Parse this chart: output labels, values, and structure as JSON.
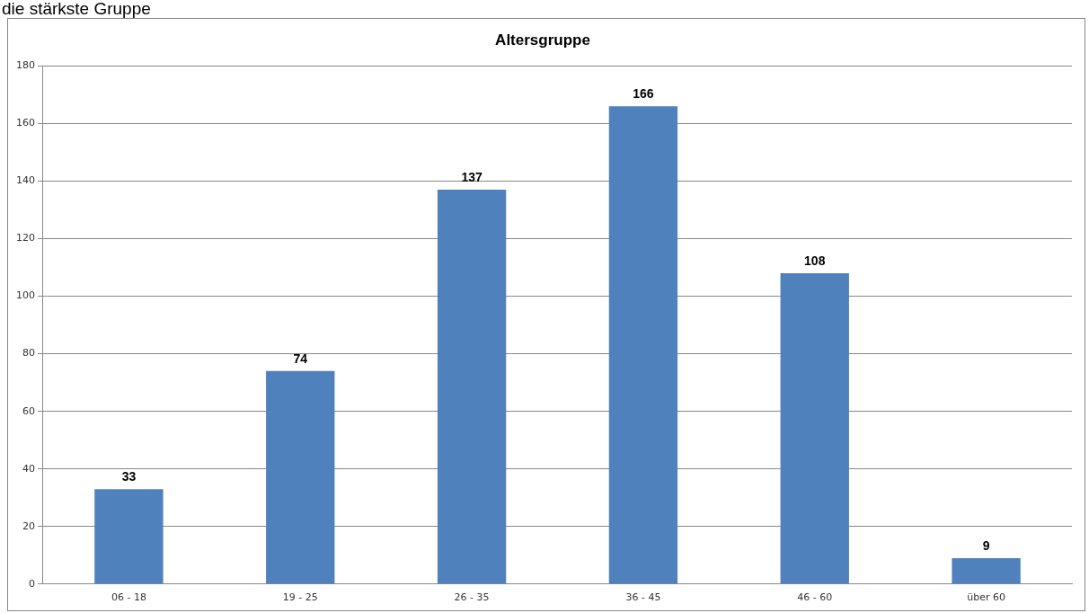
{
  "chart_data": {
    "type": "bar",
    "title": "Altersgruppe",
    "annotations": [
      "die stärkste Gruppe"
    ],
    "categories": [
      "06 - 18",
      "19 - 25",
      "26 - 35",
      "36 - 45",
      "46 - 60",
      "über 60"
    ],
    "values": [
      33,
      74,
      137,
      166,
      108,
      9
    ],
    "color": "#4f81bd",
    "ylim": [
      0,
      180
    ],
    "yticks": [
      0,
      20,
      40,
      60,
      80,
      100,
      120,
      140,
      160,
      180
    ],
    "grid": "y",
    "data_labels": true,
    "legend": false
  }
}
